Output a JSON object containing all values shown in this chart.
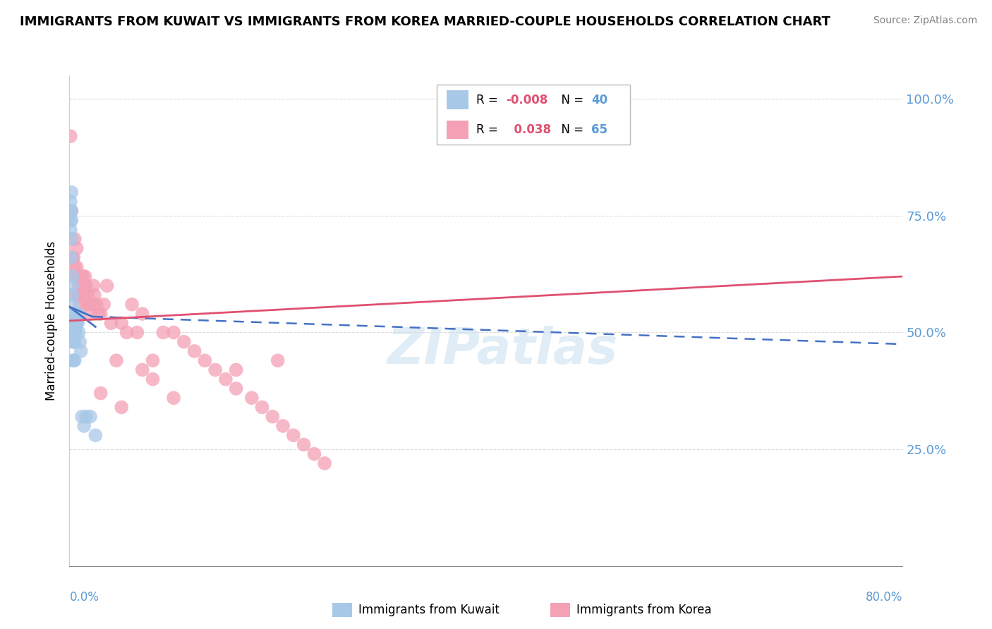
{
  "title": "IMMIGRANTS FROM KUWAIT VS IMMIGRANTS FROM KOREA MARRIED-COUPLE HOUSEHOLDS CORRELATION CHART",
  "source": "Source: ZipAtlas.com",
  "ylabel": "Married-couple Households",
  "xlim": [
    0.0,
    0.8
  ],
  "ylim": [
    0.0,
    1.05
  ],
  "legend1_R": "-0.008",
  "legend1_N": "40",
  "legend2_R": "0.038",
  "legend2_N": "65",
  "kuwait_color": "#a8c8e8",
  "korea_color": "#f4a0b5",
  "kuwait_trend_color": "#4472c4",
  "korea_trend_color": "#e05070",
  "kuwait_x": [
    0.001,
    0.001,
    0.001,
    0.001,
    0.002,
    0.002,
    0.002,
    0.002,
    0.002,
    0.003,
    0.003,
    0.003,
    0.003,
    0.003,
    0.003,
    0.003,
    0.003,
    0.003,
    0.004,
    0.004,
    0.004,
    0.004,
    0.005,
    0.005,
    0.005,
    0.005,
    0.006,
    0.006,
    0.007,
    0.007,
    0.008,
    0.008,
    0.009,
    0.01,
    0.011,
    0.012,
    0.014,
    0.016,
    0.02,
    0.025
  ],
  "kuwait_y": [
    0.78,
    0.76,
    0.74,
    0.72,
    0.8,
    0.76,
    0.74,
    0.7,
    0.66,
    0.62,
    0.6,
    0.58,
    0.56,
    0.54,
    0.52,
    0.5,
    0.48,
    0.44,
    0.52,
    0.5,
    0.48,
    0.44,
    0.52,
    0.5,
    0.48,
    0.44,
    0.52,
    0.5,
    0.54,
    0.52,
    0.54,
    0.52,
    0.5,
    0.48,
    0.46,
    0.32,
    0.3,
    0.32,
    0.32,
    0.28
  ],
  "korea_x": [
    0.001,
    0.002,
    0.003,
    0.004,
    0.005,
    0.005,
    0.006,
    0.006,
    0.007,
    0.007,
    0.008,
    0.008,
    0.009,
    0.01,
    0.01,
    0.011,
    0.012,
    0.013,
    0.014,
    0.014,
    0.015,
    0.016,
    0.016,
    0.018,
    0.019,
    0.02,
    0.022,
    0.023,
    0.024,
    0.026,
    0.028,
    0.03,
    0.033,
    0.036,
    0.04,
    0.045,
    0.05,
    0.055,
    0.06,
    0.065,
    0.07,
    0.08,
    0.09,
    0.1,
    0.11,
    0.12,
    0.13,
    0.14,
    0.15,
    0.16,
    0.175,
    0.185,
    0.195,
    0.205,
    0.215,
    0.225,
    0.235,
    0.245,
    0.1,
    0.05,
    0.07,
    0.2,
    0.16,
    0.08,
    0.03
  ],
  "korea_y": [
    0.92,
    0.76,
    0.66,
    0.66,
    0.64,
    0.7,
    0.62,
    0.58,
    0.64,
    0.68,
    0.62,
    0.58,
    0.6,
    0.58,
    0.56,
    0.62,
    0.6,
    0.62,
    0.6,
    0.58,
    0.62,
    0.6,
    0.56,
    0.58,
    0.56,
    0.54,
    0.56,
    0.6,
    0.58,
    0.56,
    0.54,
    0.54,
    0.56,
    0.6,
    0.52,
    0.44,
    0.52,
    0.5,
    0.56,
    0.5,
    0.54,
    0.44,
    0.5,
    0.5,
    0.48,
    0.46,
    0.44,
    0.42,
    0.4,
    0.38,
    0.36,
    0.34,
    0.32,
    0.3,
    0.28,
    0.26,
    0.24,
    0.22,
    0.36,
    0.34,
    0.42,
    0.44,
    0.42,
    0.4,
    0.37
  ],
  "kuwait_trend_x": [
    0.0,
    0.032
  ],
  "kuwait_trend_y_start": 0.555,
  "kuwait_trend_y_end": 0.5,
  "korea_trend_x": [
    0.0,
    0.8
  ],
  "korea_trend_y_start": 0.525,
  "korea_trend_y_end": 0.62,
  "ytick_vals": [
    0.0,
    0.25,
    0.5,
    0.75,
    1.0
  ],
  "ytick_labels": [
    "",
    "25.0%",
    "50.0%",
    "75.0%",
    "100.0%"
  ],
  "background_color": "#ffffff",
  "grid_color": "#dddddd",
  "title_fontsize": 13,
  "source_fontsize": 10,
  "axis_label_fontsize": 12,
  "ytick_color": "#5b9bd5"
}
